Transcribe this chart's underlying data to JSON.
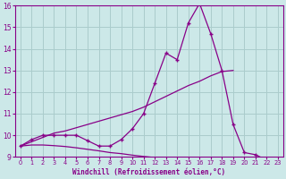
{
  "background_color": "#cce8e8",
  "grid_color": "#aacccc",
  "line_color": "#880088",
  "x_data": [
    0,
    1,
    2,
    3,
    4,
    5,
    6,
    7,
    8,
    9,
    10,
    11,
    12,
    13,
    14,
    15,
    16,
    17,
    18,
    19,
    20,
    21,
    22,
    23
  ],
  "main_line": [
    9.5,
    9.8,
    10.0,
    10.0,
    10.0,
    10.0,
    9.75,
    9.5,
    9.5,
    9.8,
    10.3,
    11.0,
    12.4,
    13.8,
    13.5,
    15.2,
    16.1,
    14.7,
    13.0,
    10.5,
    9.2,
    9.1,
    8.85,
    8.65
  ],
  "upper_line_x": [
    0,
    1,
    2,
    3,
    4,
    5,
    6,
    7,
    8,
    9,
    10,
    11,
    12,
    13,
    14,
    15,
    16,
    17,
    18,
    19
  ],
  "upper_line_y": [
    9.5,
    9.7,
    9.9,
    10.1,
    10.2,
    10.35,
    10.5,
    10.65,
    10.8,
    10.95,
    11.1,
    11.3,
    11.55,
    11.8,
    12.05,
    12.3,
    12.5,
    12.75,
    12.95,
    13.0
  ],
  "lower_line_x": [
    0,
    1,
    2,
    3,
    4,
    5,
    6,
    7,
    8,
    9,
    10,
    11,
    12,
    13,
    14,
    15,
    16,
    17,
    18,
    19,
    20,
    21,
    22,
    23
  ],
  "lower_line_y": [
    9.5,
    9.55,
    9.55,
    9.52,
    9.48,
    9.42,
    9.35,
    9.28,
    9.2,
    9.15,
    9.08,
    9.02,
    8.97,
    8.92,
    8.87,
    8.83,
    8.8,
    8.77,
    8.74,
    8.7,
    9.1,
    9.1,
    8.8,
    8.6
  ],
  "xlabel": "Windchill (Refroidissement éolien,°C)",
  "ylim": [
    9,
    16
  ],
  "xlim": [
    -0.5,
    23.5
  ],
  "yticks": [
    9,
    10,
    11,
    12,
    13,
    14,
    15,
    16
  ],
  "xticks": [
    0,
    1,
    2,
    3,
    4,
    5,
    6,
    7,
    8,
    9,
    10,
    11,
    12,
    13,
    14,
    15,
    16,
    17,
    18,
    19,
    20,
    21,
    22,
    23
  ]
}
